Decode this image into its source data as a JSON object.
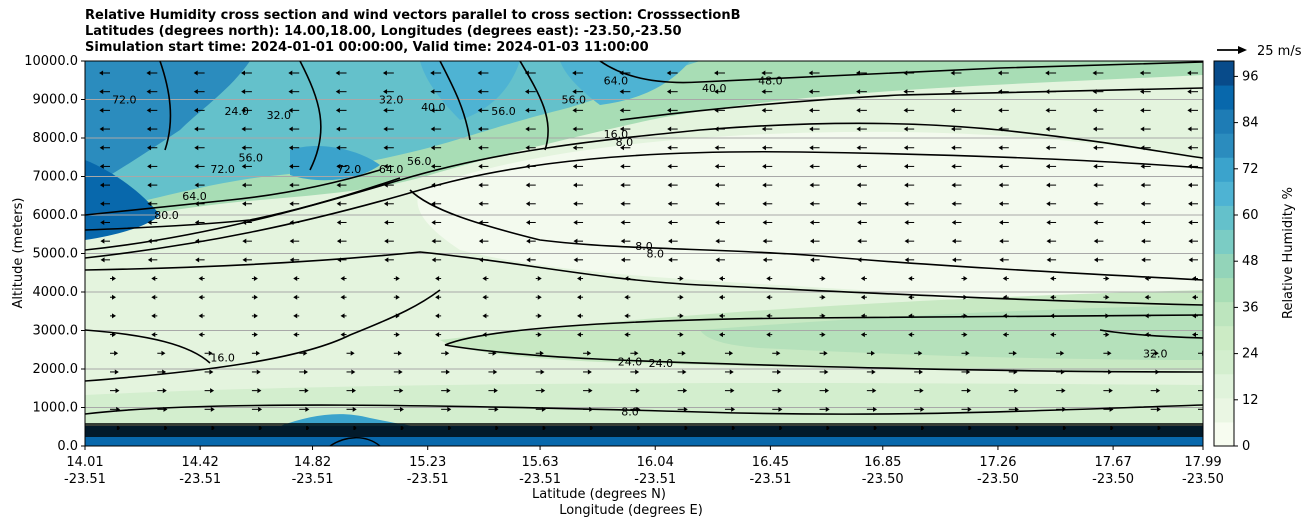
{
  "title": {
    "line1": "Relative Humidity cross section and wind vectors parallel to cross section: CrosssectionB",
    "line2": "Latitudes (degrees north): 14.00,18.00, Longitudes (degrees east): -23.50,-23.50",
    "line3": "Simulation start time: 2024-01-01 00:00:00, Valid time: 2024-01-03 11:00:00"
  },
  "quiver_key": {
    "label": "25 m/s"
  },
  "colorbar": {
    "label": "Relative Humidity %",
    "ticks": [
      "0",
      "12",
      "24",
      "36",
      "48",
      "60",
      "72",
      "84",
      "96"
    ],
    "colors": [
      "#f7fcf0",
      "#eaf6e3",
      "#e0f3db",
      "#d3eece",
      "#ccebc5",
      "#bde5be",
      "#a8ddb5",
      "#93d4b9",
      "#7bccc4",
      "#64c1cb",
      "#4eb3d3",
      "#3ba3cc",
      "#2b8cbe",
      "#1e7cb5",
      "#0868ac",
      "#084b8a"
    ]
  },
  "chart_data": {
    "type": "heatmap",
    "subtype": "filled-contour cross section with contour lines and wind vectors",
    "title": "Relative Humidity cross section and wind vectors parallel to cross section: CrosssectionB",
    "ylabel": "Altitude (meters)",
    "xlabel_lat": "Latitude (degrees N)",
    "xlabel_lon": "Longitude (degrees E)",
    "ylim": [
      0,
      10000
    ],
    "y_ticks": [
      "0.0",
      "1000.0",
      "2000.0",
      "3000.0",
      "4000.0",
      "5000.0",
      "6000.0",
      "7000.0",
      "8000.0",
      "9000.0",
      "10000.0"
    ],
    "x_ticks_lat": [
      "14.01",
      "14.42",
      "14.82",
      "15.23",
      "15.63",
      "16.04",
      "16.45",
      "16.85",
      "17.26",
      "17.67",
      "17.99"
    ],
    "x_ticks_lon": [
      "-23.51",
      "-23.51",
      "-23.51",
      "-23.51",
      "-23.51",
      "-23.51",
      "-23.51",
      "-23.50",
      "-23.50",
      "-23.50",
      "-23.50"
    ],
    "grid": "horizontal",
    "colorbar_range": [
      0,
      100
    ],
    "contour_labels": [
      {
        "text": "72.0",
        "lat": 14.15,
        "alt": 9000
      },
      {
        "text": "24.0",
        "lat": 14.55,
        "alt": 8700
      },
      {
        "text": "32.0",
        "lat": 14.7,
        "alt": 8600
      },
      {
        "text": "56.0",
        "lat": 14.6,
        "alt": 7500
      },
      {
        "text": "72.0",
        "lat": 14.5,
        "alt": 7200
      },
      {
        "text": "64.0",
        "lat": 14.4,
        "alt": 6500
      },
      {
        "text": "80.0",
        "lat": 14.3,
        "alt": 6000
      },
      {
        "text": "72.0",
        "lat": 14.95,
        "alt": 7200
      },
      {
        "text": "64.0",
        "lat": 15.1,
        "alt": 7200
      },
      {
        "text": "56.0",
        "lat": 15.2,
        "alt": 7400
      },
      {
        "text": "32.0",
        "lat": 15.1,
        "alt": 9000
      },
      {
        "text": "40.0",
        "lat": 15.25,
        "alt": 8800
      },
      {
        "text": "56.0",
        "lat": 15.5,
        "alt": 8700
      },
      {
        "text": "56.0",
        "lat": 15.75,
        "alt": 9000
      },
      {
        "text": "64.0",
        "lat": 15.9,
        "alt": 9500
      },
      {
        "text": "40.0",
        "lat": 16.25,
        "alt": 9300
      },
      {
        "text": "48.0",
        "lat": 16.45,
        "alt": 9500
      },
      {
        "text": "16.0",
        "lat": 15.9,
        "alt": 8100
      },
      {
        "text": "8.0",
        "lat": 15.93,
        "alt": 7900
      },
      {
        "text": "8.0",
        "lat": 16.0,
        "alt": 5200
      },
      {
        "text": "8.0",
        "lat": 16.04,
        "alt": 5000
      },
      {
        "text": "24.0",
        "lat": 15.95,
        "alt": 2200
      },
      {
        "text": "24.0",
        "lat": 16.06,
        "alt": 2150
      },
      {
        "text": "16.0",
        "lat": 14.5,
        "alt": 2300
      },
      {
        "text": "32.0",
        "lat": 17.82,
        "alt": 2400
      },
      {
        "text": "8.0",
        "lat": 15.95,
        "alt": 900
      }
    ]
  }
}
